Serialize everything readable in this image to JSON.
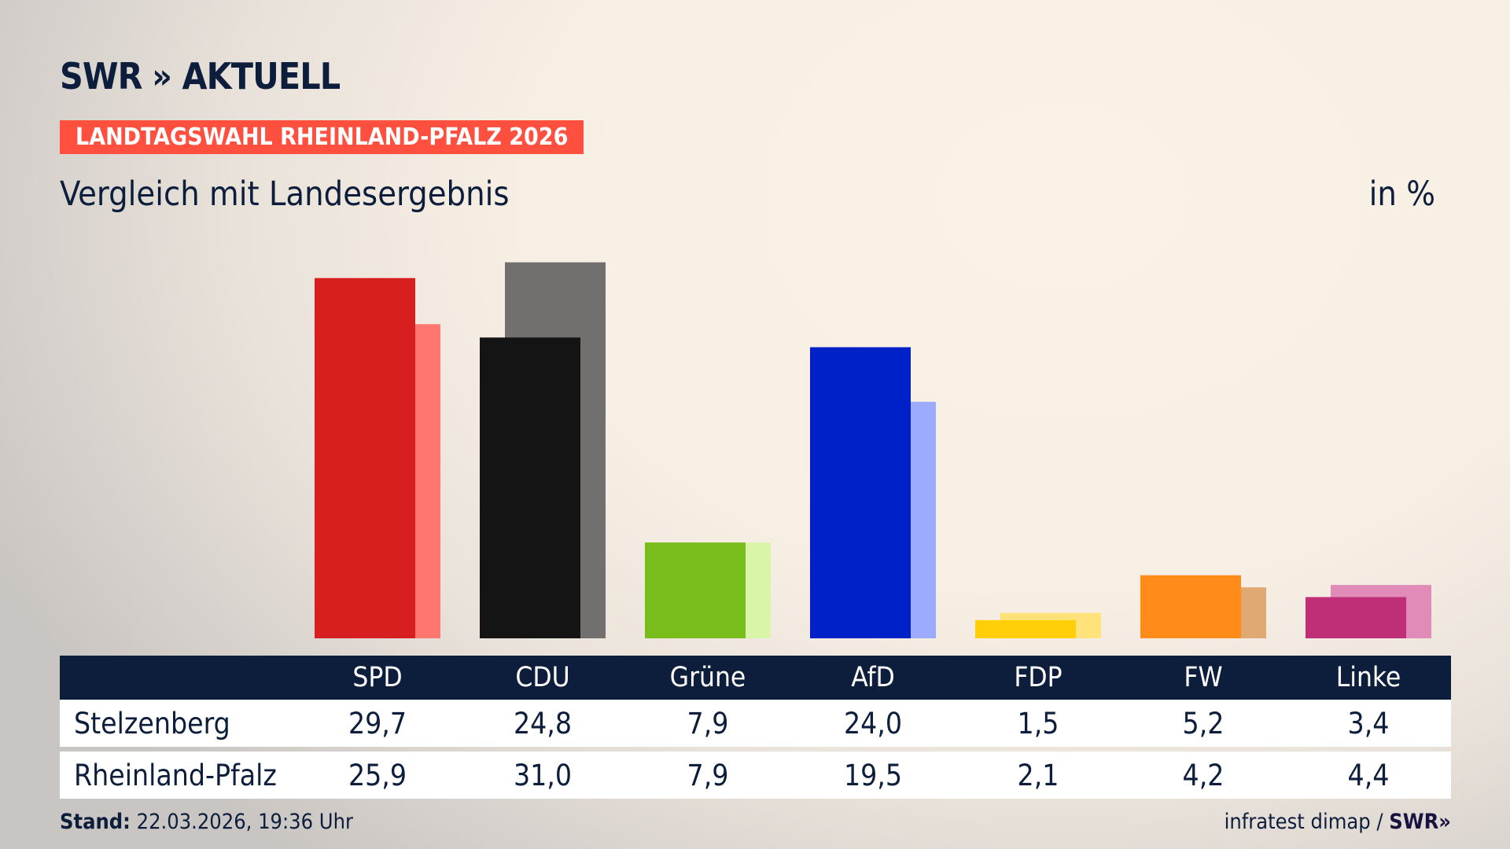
{
  "logo": {
    "brand": "SWR",
    "chevrons": "»",
    "name": "AKTUELL"
  },
  "banner": "LANDTAGSWAHL RHEINLAND-PFALZ 2026",
  "subtitle": "Vergleich mit Landesergebnis",
  "unit": "in %",
  "chart_data": {
    "type": "bar",
    "categories": [
      "SPD",
      "CDU",
      "Grüne",
      "AfD",
      "FDP",
      "FW",
      "Linke"
    ],
    "series": [
      {
        "name": "Stelzenberg",
        "values": [
          29.7,
          24.8,
          7.9,
          24.0,
          1.5,
          5.2,
          3.4
        ],
        "colors": [
          "#d81f1f",
          "#141414",
          "#79bd1c",
          "#0020c8",
          "#ffd00a",
          "#ff8c1a",
          "#be2f77"
        ]
      },
      {
        "name": "Rheinland-Pfalz",
        "values": [
          25.9,
          31.0,
          7.9,
          19.5,
          2.1,
          4.2,
          4.4
        ],
        "colors": [
          "#ff7670",
          "#72706e",
          "#d8f5a8",
          "#9dabff",
          "#ffe37a",
          "#e0a872",
          "#e08bb8"
        ]
      }
    ],
    "ylabel": "in %",
    "grid": false
  },
  "table": {
    "rows": [
      {
        "label": "Stelzenberg",
        "values": [
          "29,7",
          "24,8",
          "7,9",
          "24,0",
          "1,5",
          "5,2",
          "3,4"
        ]
      },
      {
        "label": "Rheinland-Pfalz",
        "values": [
          "25,9",
          "31,0",
          "7,9",
          "19,5",
          "2,1",
          "4,2",
          "4,4"
        ]
      }
    ]
  },
  "footer": {
    "stand_label": "Stand:",
    "stand_value": "22.03.2026, 19:36 Uhr",
    "source": "infratest dimap /",
    "source_brand": "SWR»"
  }
}
